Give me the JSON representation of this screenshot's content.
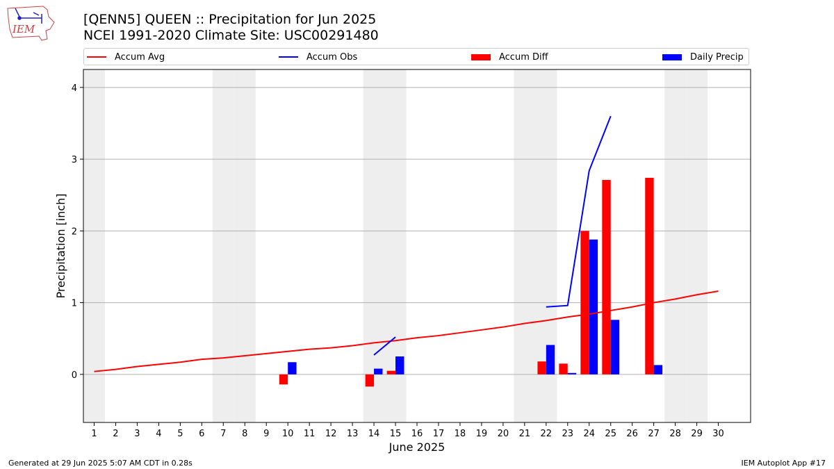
{
  "header": {
    "title_line1": "[QENN5] QUEEN :: Precipitation for Jun 2025",
    "title_line2": "NCEI 1991-2020 Climate Site: USC00291480",
    "logo_text": "IEM"
  },
  "legend": {
    "accum_avg": "Accum Avg",
    "accum_obs": "Accum Obs",
    "accum_diff": "Accum Diff",
    "daily_precip": "Daily Precip"
  },
  "footer": {
    "generated": "Generated at 29 Jun 2025 5:07 AM CDT in 0.28s",
    "app": "IEM Autoplot App #17"
  },
  "colors": {
    "avg": "#ff0000",
    "obs": "#0000ff",
    "diff": "#ff0000",
    "daily": "#0000ff",
    "weekend": "#eeeeee",
    "grid": "#b0b0b0"
  },
  "chart_data": {
    "type": "bar",
    "xlabel": "June 2025",
    "ylabel": "Precipitation [inch]",
    "xlim": [
      0.5,
      31.5
    ],
    "ylim": [
      -0.67,
      4.25
    ],
    "yticks": [
      0,
      1,
      2,
      3,
      4
    ],
    "xticks": [
      1,
      2,
      3,
      4,
      5,
      6,
      7,
      8,
      9,
      10,
      11,
      12,
      13,
      14,
      15,
      16,
      17,
      18,
      19,
      20,
      21,
      22,
      23,
      24,
      25,
      26,
      27,
      28,
      29,
      30
    ],
    "weekend_days": [
      1,
      7,
      8,
      14,
      15,
      21,
      22,
      28,
      29
    ],
    "grid": true,
    "accum_avg": {
      "days": [
        1,
        2,
        3,
        4,
        5,
        6,
        7,
        8,
        9,
        10,
        11,
        12,
        13,
        14,
        15,
        16,
        17,
        18,
        19,
        20,
        21,
        22,
        23,
        24,
        25,
        26,
        27,
        28,
        29,
        30
      ],
      "values": [
        0.04,
        0.07,
        0.11,
        0.14,
        0.17,
        0.21,
        0.23,
        0.26,
        0.29,
        0.32,
        0.35,
        0.37,
        0.4,
        0.44,
        0.47,
        0.51,
        0.54,
        0.58,
        0.62,
        0.66,
        0.71,
        0.75,
        0.8,
        0.84,
        0.89,
        0.94,
        1.0,
        1.05,
        1.11,
        1.16
      ]
    },
    "accum_obs": [
      {
        "days": [
          14,
          15
        ],
        "values": [
          0.27,
          0.52
        ]
      },
      {
        "days": [
          22,
          23,
          24,
          25
        ],
        "values": [
          0.94,
          0.96,
          2.84,
          3.6
        ]
      }
    ],
    "accum_diff": {
      "days": [
        10,
        14,
        15,
        22,
        23,
        24,
        25,
        27
      ],
      "values": [
        -0.14,
        -0.17,
        0.05,
        0.18,
        0.15,
        2.0,
        2.71,
        2.74
      ]
    },
    "daily_precip": {
      "days": [
        10,
        14,
        15,
        22,
        23,
        24,
        25,
        27
      ],
      "values": [
        0.17,
        0.08,
        0.25,
        0.41,
        0.02,
        1.88,
        0.76,
        0.13
      ]
    }
  }
}
